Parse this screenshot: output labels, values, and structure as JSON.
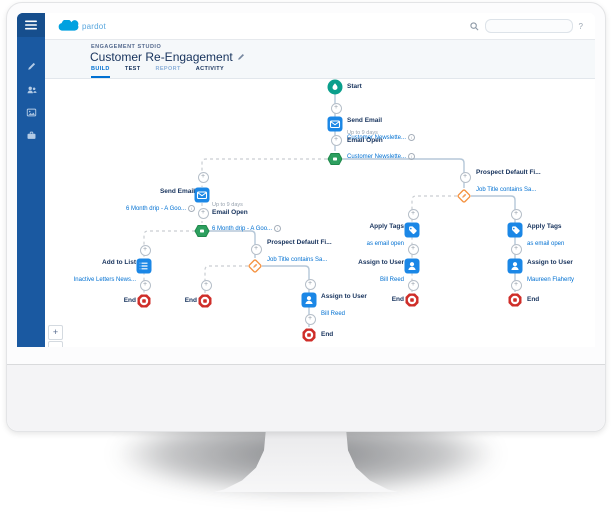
{
  "topbar": {
    "logo_product": "pardot",
    "search_value": "",
    "help_label": "?"
  },
  "header": {
    "eyebrow": "ENGAGEMENT STUDIO",
    "title": "Customer Re-Engagement",
    "tabs": [
      {
        "label": "BUILD",
        "active": true
      },
      {
        "label": "TEST",
        "active": false
      },
      {
        "label": "REPORT",
        "active": false
      },
      {
        "label": "ACTIVITY",
        "active": false
      }
    ]
  },
  "sidebar": {
    "items": [
      "menu-icon",
      "pencil-icon",
      "users-icon",
      "image-icon",
      "briefcase-icon"
    ]
  },
  "canvas_controls": {
    "zoom_in": "+",
    "fit": "↔",
    "add_step": "+"
  },
  "flow": {
    "nodes": {
      "start": {
        "title": "Start"
      },
      "send_email_1": {
        "title": "Send Email",
        "subtitle": "Customer Newslette..."
      },
      "email_open_1": {
        "meta": "Up to 9 days",
        "title": "Email Open",
        "subtitle": "Customer Newslette..."
      },
      "send_email_2": {
        "title": "Send Email",
        "subtitle": "6 Month drip - A Goo..."
      },
      "email_open_2": {
        "meta": "Up to 9 days",
        "title": "Email Open",
        "subtitle": "6 Month drip - A Goo..."
      },
      "add_to_list": {
        "title": "Add to List",
        "subtitle": "Inactive Letters News..."
      },
      "rule_center": {
        "title": "Prospect Default Fi...",
        "subtitle": "Job Title contains Sa..."
      },
      "assign_user_center": {
        "title": "Assign to User",
        "subtitle": "Bill Reed"
      },
      "rule_right": {
        "title": "Prospect Default Fi...",
        "subtitle": "Job Title contains Sa..."
      },
      "apply_tags_left": {
        "title": "Apply Tags",
        "subtitle": "as email open"
      },
      "assign_user_left": {
        "title": "Assign to User",
        "subtitle": "Bill Reed"
      },
      "apply_tags_right": {
        "title": "Apply Tags",
        "subtitle": "as email open"
      },
      "assign_user_right": {
        "title": "Assign to User",
        "subtitle": "Maureen Flaherty"
      },
      "end_1": {
        "title": "End"
      },
      "end_2": {
        "title": "End"
      },
      "end_3": {
        "title": "End"
      },
      "end_4": {
        "title": "End"
      },
      "end_5": {
        "title": "End"
      }
    }
  },
  "colors": {
    "sidebar_blue": "#1a59a1",
    "action_blue": "#1b87e6",
    "trigger_green": "#2da05f",
    "rule_orange": "#f49342",
    "end_red": "#cf2e29",
    "start_teal": "#0a9f8c",
    "link_blue": "#0070d2",
    "title_dark": "#16325c"
  }
}
